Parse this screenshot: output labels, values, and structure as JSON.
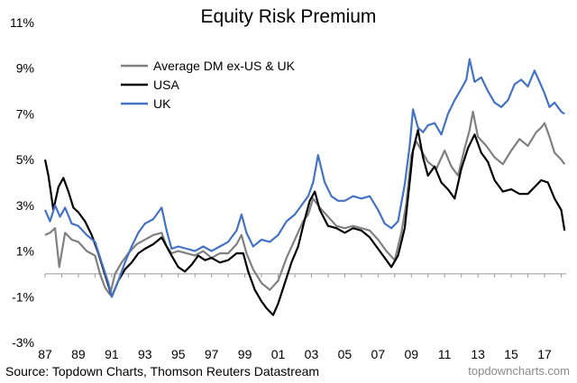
{
  "chart_data": {
    "type": "line",
    "title": "Equity Risk Premium",
    "xlabel": "",
    "ylabel": "",
    "x_tick_labels": [
      "87",
      "89",
      "91",
      "93",
      "95",
      "97",
      "99",
      "01",
      "03",
      "05",
      "07",
      "09",
      "11",
      "13",
      "15",
      "17"
    ],
    "x_tick_years": [
      1987,
      1989,
      1991,
      1993,
      1995,
      1997,
      1999,
      2001,
      2003,
      2005,
      2007,
      2009,
      2011,
      2013,
      2015,
      2017
    ],
    "y_tick_labels": [
      "11%",
      "9%",
      "7%",
      "5%",
      "3%",
      "1%",
      "-1%",
      "-3%"
    ],
    "y_tick_values": [
      11,
      9,
      7,
      5,
      3,
      1,
      -1,
      -3
    ],
    "xlim": [
      1987,
      2018.3
    ],
    "ylim": [
      -3,
      11
    ],
    "grid": false,
    "legend_position": "top-left",
    "series": [
      {
        "name": "Average DM ex-US & UK",
        "color": "#808080",
        "x": [
          1987.0,
          1987.3,
          1987.6,
          1987.85,
          1988.2,
          1988.6,
          1989.0,
          1989.5,
          1990.0,
          1990.3,
          1990.6,
          1990.9,
          1991.2,
          1991.6,
          1992.0,
          1992.5,
          1993.0,
          1993.5,
          1994.0,
          1994.3,
          1994.6,
          1995.0,
          1995.5,
          1996.0,
          1996.5,
          1997.0,
          1997.5,
          1998.0,
          1998.5,
          1998.8,
          1999.1,
          1999.5,
          2000.0,
          2000.5,
          2001.0,
          2001.5,
          2002.0,
          2002.5,
          2002.8,
          2003.1,
          2003.5,
          2004.0,
          2004.5,
          2005.0,
          2005.5,
          2006.0,
          2006.5,
          2007.0,
          2007.5,
          2008.0,
          2008.4,
          2008.7,
          2009.0,
          2009.3,
          2009.6,
          2010.0,
          2010.5,
          2011.0,
          2011.4,
          2011.8,
          2012.2,
          2012.5,
          2012.7,
          2013.0,
          2013.5,
          2014.0,
          2014.5,
          2015.0,
          2015.5,
          2016.0,
          2016.5,
          2016.8,
          2017.0,
          2017.3,
          2017.6,
          2018.0,
          2018.2
        ],
        "values": [
          1.7,
          1.8,
          2.0,
          0.3,
          1.8,
          1.5,
          1.4,
          1.0,
          0.8,
          0.0,
          -0.6,
          -0.9,
          0.0,
          0.5,
          0.9,
          1.3,
          1.5,
          1.7,
          1.8,
          1.2,
          0.9,
          1.0,
          0.9,
          0.8,
          1.0,
          0.7,
          0.9,
          0.9,
          1.3,
          1.7,
          0.9,
          0.2,
          -0.4,
          -0.7,
          -0.3,
          0.7,
          1.5,
          2.3,
          2.6,
          3.3,
          2.9,
          2.5,
          2.1,
          2.0,
          2.1,
          2.0,
          1.9,
          1.5,
          1.0,
          0.6,
          1.8,
          3.1,
          5.2,
          5.8,
          5.4,
          4.9,
          4.6,
          5.4,
          4.7,
          4.3,
          5.5,
          6.3,
          7.1,
          6.0,
          5.6,
          5.1,
          4.8,
          5.4,
          5.9,
          5.6,
          6.2,
          6.4,
          6.6,
          6.0,
          5.3,
          5.0,
          4.8
        ]
      },
      {
        "name": "USA",
        "color": "#000000",
        "x": [
          1987.0,
          1987.2,
          1987.5,
          1987.8,
          1988.1,
          1988.4,
          1988.7,
          1989.0,
          1989.4,
          1989.8,
          1990.2,
          1990.5,
          1990.8,
          1991.0,
          1991.4,
          1991.8,
          1992.2,
          1992.6,
          1993.0,
          1993.5,
          1994.0,
          1994.3,
          1994.6,
          1995.0,
          1995.4,
          1995.8,
          1996.2,
          1996.6,
          1997.0,
          1997.5,
          1998.0,
          1998.5,
          1998.9,
          1999.2,
          1999.6,
          2000.0,
          2000.3,
          2000.7,
          2001.0,
          2001.4,
          2001.8,
          2002.2,
          2002.6,
          2002.9,
          2003.2,
          2003.5,
          2004.0,
          2004.5,
          2005.0,
          2005.5,
          2006.0,
          2006.5,
          2007.0,
          2007.5,
          2007.8,
          2008.2,
          2008.6,
          2008.9,
          2009.1,
          2009.4,
          2009.7,
          2010.0,
          2010.4,
          2010.8,
          2011.2,
          2011.6,
          2012.0,
          2012.4,
          2012.8,
          2013.2,
          2013.6,
          2014.0,
          2014.5,
          2015.0,
          2015.5,
          2016.0,
          2016.4,
          2016.8,
          2017.2,
          2017.6,
          2018.0,
          2018.2
        ],
        "values": [
          5.0,
          4.3,
          2.8,
          3.8,
          4.2,
          3.6,
          2.9,
          2.7,
          2.3,
          1.7,
          0.9,
          0.2,
          -0.5,
          -1.0,
          -0.3,
          0.2,
          0.5,
          0.9,
          1.1,
          1.3,
          1.6,
          1.2,
          0.8,
          0.3,
          0.1,
          0.4,
          0.8,
          0.6,
          0.7,
          0.5,
          0.6,
          0.9,
          0.9,
          0.1,
          -0.7,
          -1.2,
          -1.5,
          -1.8,
          -1.3,
          -0.4,
          0.5,
          1.2,
          2.4,
          3.2,
          3.6,
          2.8,
          2.1,
          2.0,
          1.8,
          2.0,
          1.9,
          1.6,
          1.1,
          0.6,
          0.3,
          0.8,
          2.0,
          4.0,
          5.4,
          6.3,
          5.1,
          4.3,
          4.7,
          4.0,
          3.7,
          3.3,
          4.6,
          5.5,
          6.1,
          5.3,
          4.9,
          4.1,
          3.6,
          3.7,
          3.5,
          3.5,
          3.8,
          4.1,
          4.0,
          3.3,
          2.8,
          1.9
        ]
      },
      {
        "name": "UK",
        "color": "#4472c4",
        "x": [
          1987.0,
          1987.3,
          1987.6,
          1987.9,
          1988.2,
          1988.6,
          1989.0,
          1989.5,
          1990.0,
          1990.4,
          1990.8,
          1991.0,
          1991.4,
          1991.8,
          1992.2,
          1992.6,
          1993.0,
          1993.5,
          1994.0,
          1994.3,
          1994.6,
          1995.0,
          1995.5,
          1996.0,
          1996.5,
          1997.0,
          1997.5,
          1998.0,
          1998.5,
          1998.8,
          1999.1,
          1999.5,
          2000.0,
          2000.5,
          2001.0,
          2001.5,
          2002.0,
          2002.4,
          2002.8,
          2003.1,
          2003.4,
          2003.8,
          2004.2,
          2004.6,
          2005.0,
          2005.5,
          2006.0,
          2006.5,
          2007.0,
          2007.4,
          2007.8,
          2008.2,
          2008.6,
          2008.9,
          2009.1,
          2009.4,
          2009.7,
          2010.0,
          2010.4,
          2010.8,
          2011.2,
          2011.6,
          2012.0,
          2012.3,
          2012.5,
          2012.8,
          2013.2,
          2013.6,
          2014.0,
          2014.4,
          2014.8,
          2015.2,
          2015.6,
          2016.0,
          2016.4,
          2016.7,
          2017.0,
          2017.3,
          2017.6,
          2018.0,
          2018.2
        ],
        "values": [
          2.8,
          2.3,
          3.0,
          2.5,
          2.9,
          2.2,
          2.1,
          1.7,
          1.4,
          0.5,
          -0.4,
          -1.0,
          -0.3,
          0.5,
          1.2,
          1.8,
          2.2,
          2.4,
          2.9,
          1.9,
          1.1,
          1.2,
          1.1,
          1.0,
          1.2,
          1.0,
          1.2,
          1.4,
          1.9,
          2.6,
          1.8,
          1.2,
          1.5,
          1.4,
          1.7,
          2.3,
          2.6,
          3.0,
          3.4,
          4.0,
          5.2,
          4.0,
          3.4,
          3.2,
          3.2,
          3.4,
          3.3,
          3.4,
          2.8,
          2.2,
          2.0,
          2.3,
          3.9,
          5.6,
          7.2,
          6.4,
          6.2,
          6.5,
          6.6,
          6.1,
          7.0,
          7.6,
          8.1,
          8.5,
          9.4,
          8.4,
          8.6,
          8.0,
          7.5,
          7.3,
          7.6,
          8.3,
          8.5,
          8.2,
          8.9,
          8.4,
          7.9,
          7.3,
          7.5,
          7.1,
          7.0
        ]
      }
    ],
    "source_text": "Source: Topdown Charts, Thomson Reuters Datastream",
    "watermark_text": "topdowncharts.com"
  }
}
